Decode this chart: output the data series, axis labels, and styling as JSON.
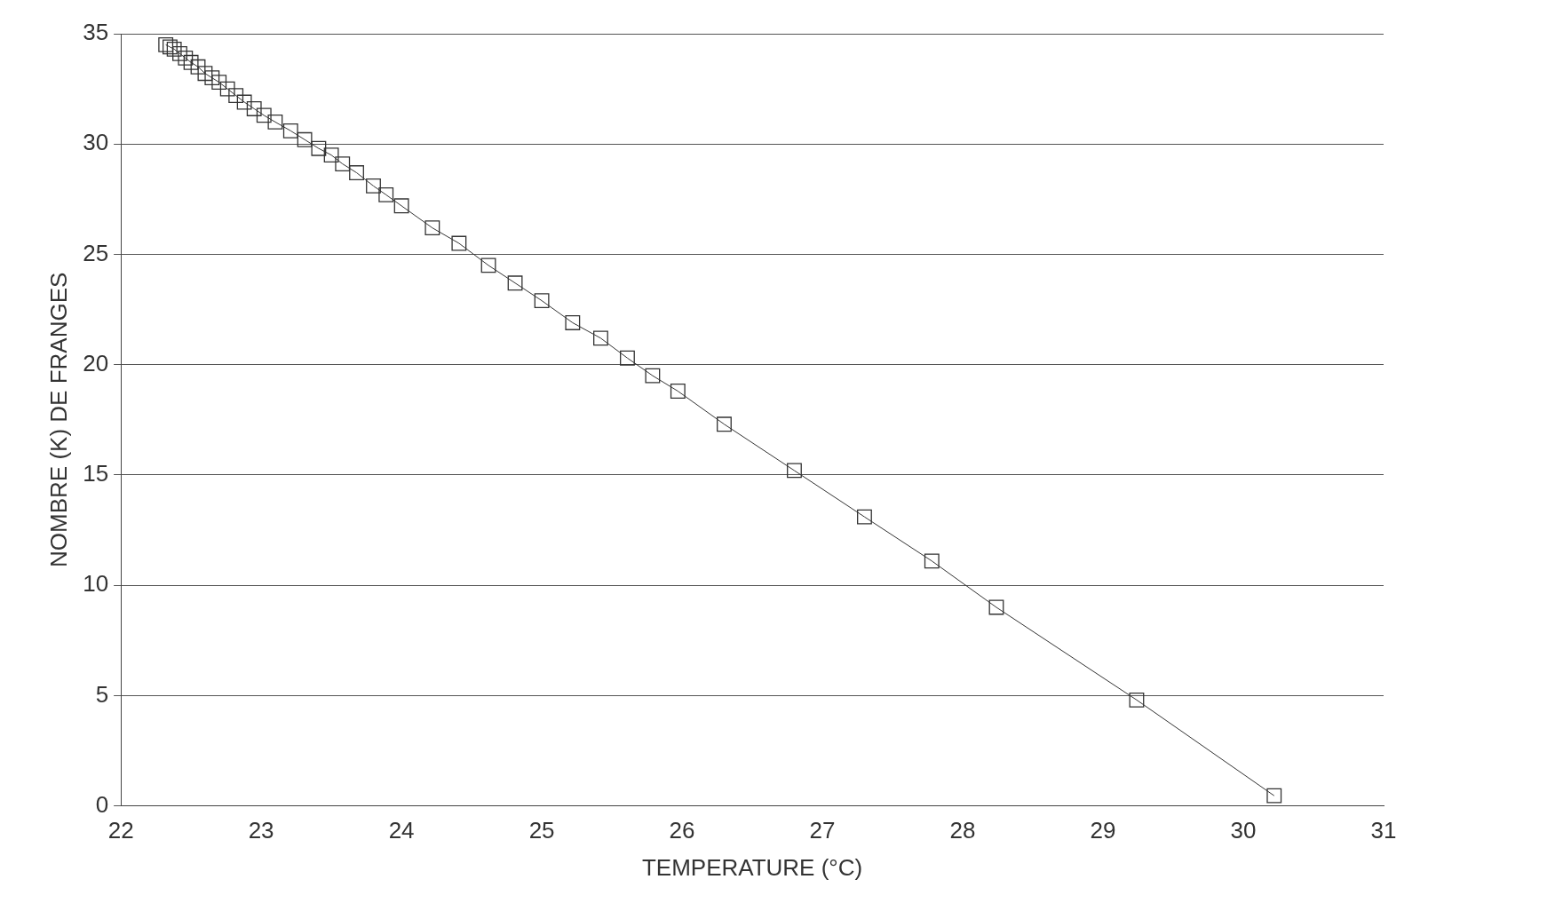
{
  "chart_data": {
    "type": "line",
    "xlabel": "TEMPERATURE (°C)",
    "ylabel": "NOMBRE (K) DE FRANGES",
    "series": [
      {
        "color": "#333333",
        "x": [
          22.32,
          22.35,
          22.38,
          22.42,
          22.46,
          22.5,
          22.55,
          22.6,
          22.65,
          22.7,
          22.76,
          22.82,
          22.88,
          22.95,
          23.02,
          23.1,
          23.21,
          23.31,
          23.41,
          23.5,
          23.58,
          23.68,
          23.8,
          23.89,
          24.0,
          24.22,
          24.41,
          24.62,
          24.81,
          25.0,
          25.22,
          25.42,
          25.61,
          25.79,
          25.97,
          26.3,
          26.8,
          27.3,
          27.78,
          28.24,
          29.24,
          30.22
        ],
        "values": [
          34.5,
          34.4,
          34.3,
          34.1,
          33.9,
          33.7,
          33.5,
          33.2,
          33.0,
          32.8,
          32.5,
          32.2,
          31.9,
          31.6,
          31.3,
          31.0,
          30.6,
          30.2,
          29.8,
          29.5,
          29.1,
          28.7,
          28.1,
          27.7,
          27.2,
          26.2,
          25.5,
          24.5,
          23.7,
          22.9,
          21.9,
          21.2,
          20.3,
          19.5,
          18.8,
          17.3,
          15.2,
          13.1,
          11.1,
          9.0,
          4.8,
          0.46
        ]
      }
    ],
    "xlim": [
      22,
      31
    ],
    "xticks": [
      22,
      23,
      24,
      25,
      26,
      27,
      28,
      29,
      30,
      31
    ],
    "ylim": [
      0,
      35
    ],
    "yticks": [
      0,
      5,
      10,
      15,
      20,
      25,
      30,
      35
    ],
    "grid": "y",
    "marker": "square",
    "line_style": "solid",
    "legend": false
  }
}
